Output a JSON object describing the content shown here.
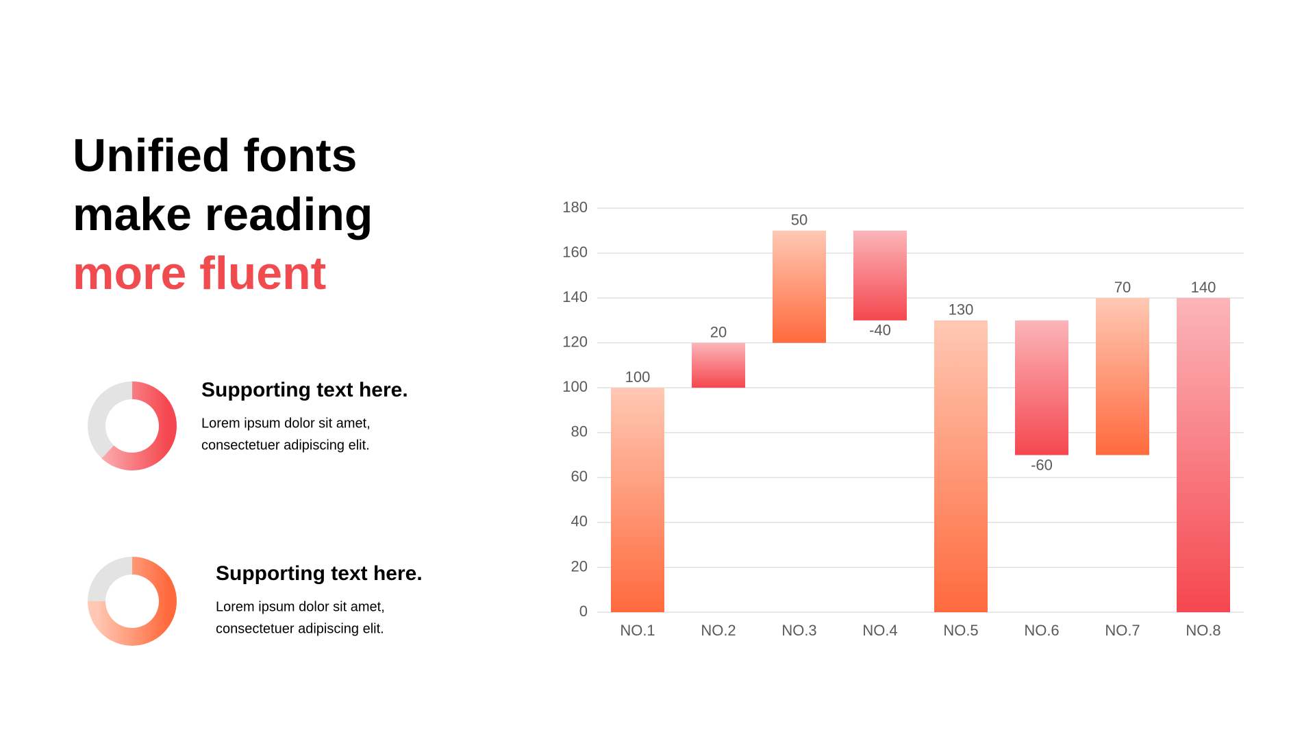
{
  "header": {
    "title_lines": [
      "Unified fonts",
      "make reading"
    ],
    "title_highlight": "more fluent"
  },
  "items": [
    {
      "heading": "Supporting text here.",
      "body_lines": [
        "Lorem ipsum dolor sit amet,",
        "consectetuer adipiscing elit."
      ]
    },
    {
      "heading": "Supporting text here.",
      "body_lines": [
        "Lorem ipsum dolor sit amet,",
        "consectetuer adipiscing elit."
      ]
    }
  ],
  "chart_data": [
    {
      "type": "waterfall",
      "categories": [
        "NO.1",
        "NO.2",
        "NO.3",
        "NO.4",
        "NO.5",
        "NO.6",
        "NO.7",
        "NO.8"
      ],
      "values": [
        100,
        20,
        50,
        -40,
        130,
        -60,
        70,
        140
      ],
      "totals": [
        false,
        false,
        false,
        false,
        true,
        false,
        false,
        true
      ],
      "colors": [
        [
          "#ffc8b4",
          "#ff6a3d"
        ],
        [
          "#fbb5b9",
          "#f5474f"
        ],
        [
          "#ffc8b4",
          "#ff6a3d"
        ],
        [
          "#fbb5b9",
          "#f5474f"
        ],
        [
          "#ffc8b4",
          "#ff6a3d"
        ],
        [
          "#fbb5b9",
          "#f5474f"
        ],
        [
          "#ffc8b4",
          "#ff6a3d"
        ],
        [
          "#fbb5b9",
          "#f5474f"
        ]
      ],
      "ylim": [
        0,
        180
      ],
      "yticks": [
        0,
        20,
        40,
        60,
        80,
        100,
        120,
        140,
        160,
        180
      ],
      "grid": true
    },
    {
      "type": "donut",
      "values": [
        62,
        38
      ],
      "colors": [
        [
          "#fbb5b9",
          "#f5474f"
        ],
        "#e3e3e3"
      ]
    },
    {
      "type": "donut",
      "values": [
        75,
        25
      ],
      "colors": [
        [
          "#ffc8b4",
          "#ff6a3d"
        ],
        "#e3e3e3"
      ]
    }
  ]
}
